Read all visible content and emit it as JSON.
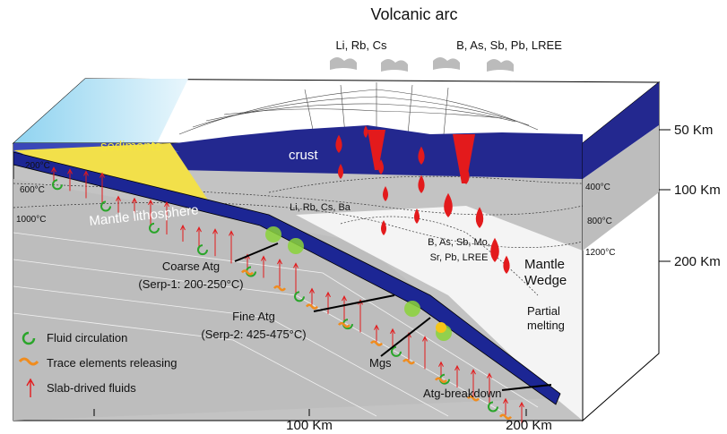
{
  "title": "Volcanic arc",
  "arc_elements": [
    "Li, Rb, Cs",
    "B, As, Sb, Pb, LREE"
  ],
  "labels": {
    "sediments": "sediments",
    "crust": "crust",
    "mantle_lithosphere": "Mantle lithosphere",
    "mantle_wedge": [
      "Mantle",
      "Wedge"
    ],
    "partial_melting": [
      "Partial",
      "melting"
    ],
    "coarse_atg": [
      "Coarse Atg",
      "(Serp-1: 200-250°C)"
    ],
    "fine_atg": [
      "Fine Atg",
      "(Serp-2: 425-475°C)"
    ],
    "mgs": "Mgs",
    "atg_breakdown": "Atg-breakdown"
  },
  "slab_elements": {
    "shallow": "Li, Rb, Cs, Ba",
    "deep": [
      "B, As, Sb, Mo,",
      "Sr, Pb, LREE"
    ]
  },
  "isotherms": {
    "left": [
      "200°C",
      "600°C",
      "1000°C"
    ],
    "right": [
      "400°C",
      "800°C",
      "1200°C"
    ]
  },
  "legend": [
    "Fluid circulation",
    "Trace elements releasing",
    "Slab-drived fluids"
  ],
  "depth_scale": [
    "50 Km",
    "100 Km",
    "200 Km"
  ],
  "distance_scale": [
    "100 Km",
    "200 Km"
  ]
}
